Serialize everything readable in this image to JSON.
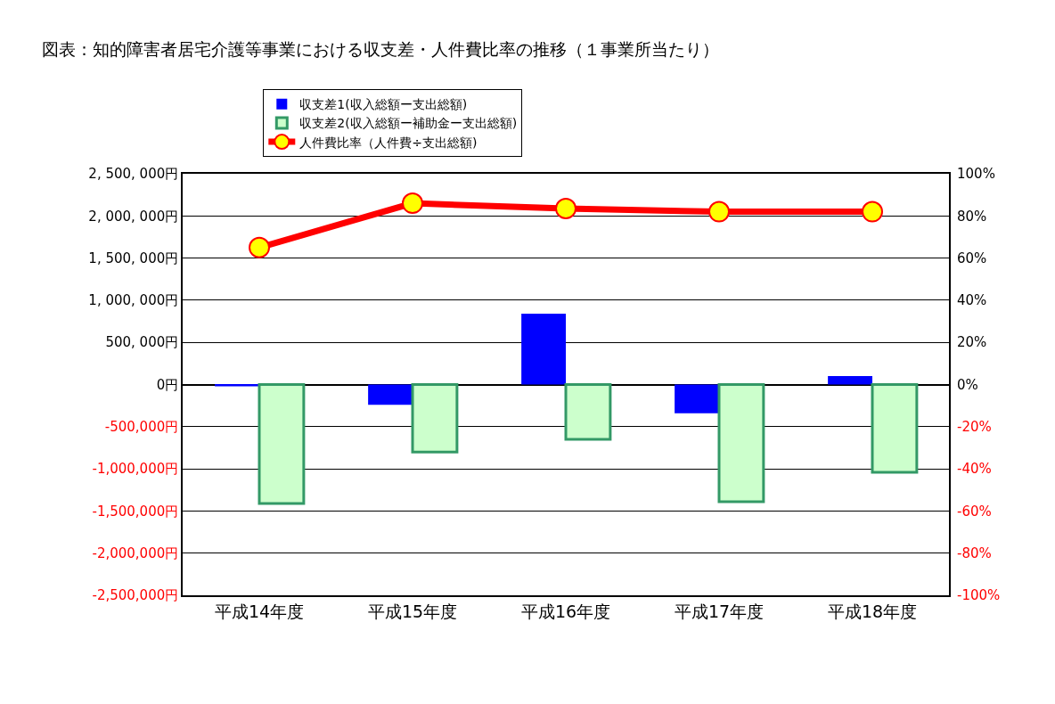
{
  "chart_data": {
    "type": "bar",
    "title": "図表：知的障害者居宅介護等事業における収支差・人件費比率の推移（１事業所当たり）",
    "categories": [
      "平成14年度",
      "平成15年度",
      "平成16年度",
      "平成17年度",
      "平成18年度"
    ],
    "series": [
      {
        "name": "収支差1(収入総額ー支出総額)",
        "color": "#0000ff",
        "values": [
          -20000,
          -240000,
          840000,
          -340000,
          100000
        ]
      },
      {
        "name": "収支差2(収入総額ー補助金ー支出総額)",
        "color": "#ccffcc",
        "values": [
          -1410000,
          -800000,
          -650000,
          -1390000,
          -1040000
        ]
      },
      {
        "name": "人件費比率（人件費÷支出総額)",
        "type": "line",
        "axis": "y2",
        "color": "#ff0000",
        "marker": "circle",
        "values": [
          65,
          86,
          83.5,
          82,
          82
        ]
      }
    ],
    "ylim": [
      -2500000,
      2500000
    ],
    "yticks": [
      {
        "value": 2500000,
        "label": "2, 500, 000円"
      },
      {
        "value": 2000000,
        "label": "2, 000, 000円"
      },
      {
        "value": 1500000,
        "label": "1, 500, 000円"
      },
      {
        "value": 1000000,
        "label": "1, 000, 000円"
      },
      {
        "value": 500000,
        "label": "500, 000円"
      },
      {
        "value": 0,
        "label": "0円"
      },
      {
        "value": -500000,
        "label": "-500,000円"
      },
      {
        "value": -1000000,
        "label": "-1,000,000円"
      },
      {
        "value": -1500000,
        "label": "-1,500,000円"
      },
      {
        "value": -2000000,
        "label": "-2,000,000円"
      },
      {
        "value": -2500000,
        "label": "-2,500,000円"
      }
    ],
    "y2lim": [
      -100,
      100
    ],
    "y2ticks": [
      {
        "value": 100,
        "label": "100%"
      },
      {
        "value": 80,
        "label": "80%"
      },
      {
        "value": 60,
        "label": "60%"
      },
      {
        "value": 40,
        "label": "40%"
      },
      {
        "value": 20,
        "label": "20%"
      },
      {
        "value": 0,
        "label": "0%"
      },
      {
        "value": -20,
        "label": "-20%"
      },
      {
        "value": -40,
        "label": "-40%"
      },
      {
        "value": -60,
        "label": "-60%"
      },
      {
        "value": -80,
        "label": "-80%"
      },
      {
        "value": -100,
        "label": "-100%"
      }
    ],
    "grid": "y",
    "legend": "top"
  }
}
